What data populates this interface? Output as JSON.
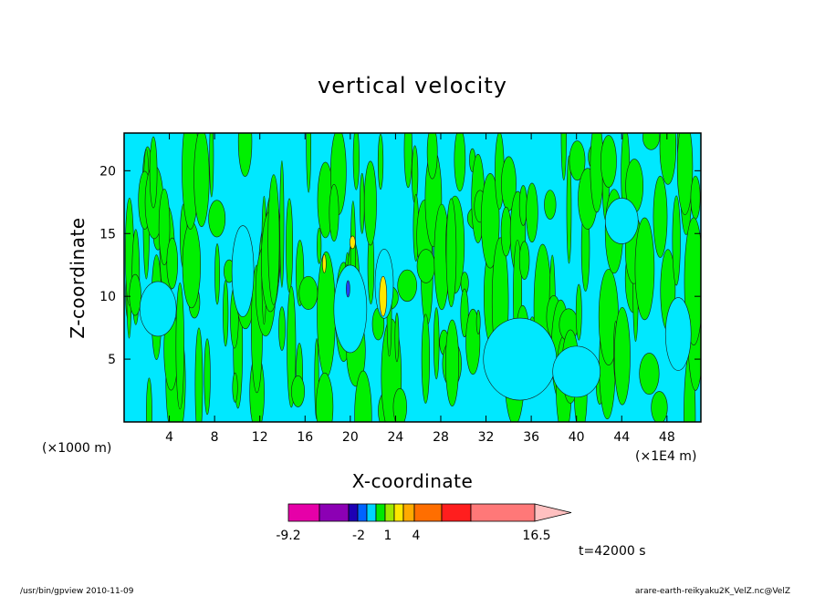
{
  "chart_data": {
    "type": "heatmap",
    "title": "vertical velocity",
    "xlabel": "X-coordinate",
    "ylabel": "Z-coordinate",
    "x_unit": "(×1000 m)",
    "x_unit_secondary": "(×1E4 m)",
    "xlim": [
      0,
      51
    ],
    "ylim": [
      0,
      23
    ],
    "x_ticks": [
      4,
      8,
      12,
      16,
      20,
      24,
      28,
      32,
      36,
      40,
      44,
      48
    ],
    "y_ticks": [
      5,
      10,
      15,
      20
    ],
    "time_label": "t=42000 s",
    "colorbar": {
      "label_values": [
        "-9.2",
        "-2",
        "1",
        "4",
        "16.5"
      ],
      "bins": [
        {
          "color": "#e600a8"
        },
        {
          "color": "#8c00b4"
        },
        {
          "color": "#1e00b4"
        },
        {
          "color": "#0064ff"
        },
        {
          "color": "#00d4ff"
        },
        {
          "color": "#00e800"
        },
        {
          "color": "#a0e800"
        },
        {
          "color": "#ffe800"
        },
        {
          "color": "#ffaa00"
        },
        {
          "color": "#ff6e00"
        },
        {
          "color": "#ff1e1e"
        },
        {
          "color": "#ff7878"
        }
      ],
      "arrow_color": "#ffc0c0"
    },
    "field_colors": {
      "negative": "#00e8ff",
      "positive": "#00f000",
      "strong_positive": "#ffe800",
      "strong_negative": "#2040ff"
    }
  },
  "footer": {
    "left": "/usr/bin/gpview   2010-11-09",
    "right": "arare-earth-reikyaku2K_VelZ.nc@VelZ"
  }
}
